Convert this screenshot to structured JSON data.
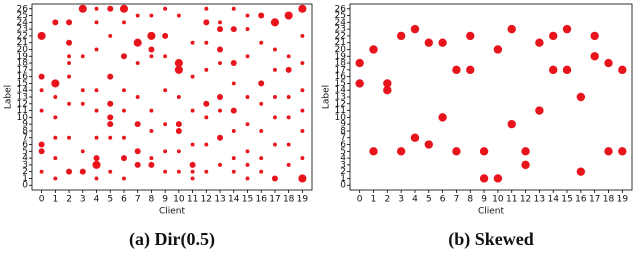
{
  "chart_data": [
    {
      "type": "scatter",
      "caption": "(a) Dir(0.5)",
      "xlabel": "Client",
      "ylabel": "Label",
      "color": "#e8141c",
      "xlim": [
        -0.7,
        19.7
      ],
      "ylim": [
        -0.7,
        26.7
      ],
      "xticks": [
        0,
        1,
        2,
        3,
        4,
        5,
        6,
        7,
        8,
        9,
        10,
        11,
        12,
        13,
        14,
        15,
        16,
        17,
        18,
        19
      ],
      "yticks": [
        0,
        1,
        2,
        3,
        4,
        5,
        6,
        7,
        8,
        9,
        10,
        11,
        12,
        13,
        14,
        15,
        16,
        17,
        18,
        19,
        20,
        21,
        22,
        23,
        24,
        25,
        26
      ],
      "x": [
        0,
        0,
        0,
        0,
        0,
        0,
        0,
        1,
        1,
        1,
        1,
        1,
        1,
        1,
        2,
        2,
        2,
        2,
        2,
        2,
        2,
        2,
        3,
        3,
        3,
        3,
        3,
        3,
        4,
        4,
        4,
        4,
        4,
        4,
        4,
        4,
        4,
        5,
        5,
        5,
        5,
        5,
        5,
        5,
        5,
        6,
        6,
        6,
        6,
        6,
        6,
        6,
        6,
        7,
        7,
        7,
        7,
        7,
        7,
        7,
        8,
        8,
        8,
        8,
        8,
        8,
        8,
        8,
        9,
        9,
        9,
        9,
        9,
        9,
        9,
        10,
        10,
        10,
        10,
        10,
        10,
        10,
        10,
        11,
        11,
        11,
        11,
        11,
        11,
        11,
        12,
        12,
        12,
        12,
        12,
        12,
        12,
        12,
        13,
        13,
        13,
        13,
        13,
        13,
        13,
        13,
        14,
        14,
        14,
        14,
        14,
        14,
        14,
        14,
        15,
        15,
        15,
        15,
        15,
        15,
        15,
        15,
        16,
        16,
        16,
        16,
        16,
        16,
        16,
        17,
        17,
        17,
        17,
        17,
        17,
        17,
        18,
        18,
        18,
        18,
        18,
        18,
        18,
        19,
        19,
        19,
        19,
        19,
        19,
        19,
        19
      ],
      "y": [
        22,
        16,
        14,
        11,
        6,
        5,
        2,
        24,
        15,
        13,
        10,
        7,
        4,
        1,
        24,
        21,
        19,
        18,
        16,
        12,
        7,
        2,
        26,
        19,
        14,
        12,
        5,
        2,
        26,
        24,
        20,
        14,
        11,
        7,
        4,
        3,
        1,
        26,
        22,
        16,
        12,
        10,
        9,
        7,
        2,
        26,
        24,
        19,
        14,
        11,
        7,
        4,
        1,
        25,
        21,
        18,
        13,
        9,
        5,
        3,
        25,
        22,
        20,
        19,
        11,
        8,
        4,
        3,
        26,
        22,
        19,
        14,
        9,
        5,
        2,
        25,
        18,
        17,
        13,
        9,
        8,
        5,
        2,
        21,
        16,
        11,
        6,
        3,
        2,
        1,
        26,
        24,
        21,
        17,
        12,
        10,
        6,
        2,
        24,
        23,
        20,
        18,
        13,
        11,
        7,
        3,
        26,
        23,
        18,
        15,
        11,
        8,
        4,
        2,
        25,
        23,
        19,
        13,
        9,
        5,
        3,
        1,
        25,
        21,
        15,
        12,
        8,
        4,
        2,
        24,
        20,
        17,
        13,
        10,
        6,
        1,
        25,
        19,
        17,
        13,
        10,
        6,
        3,
        26,
        22,
        18,
        14,
        11,
        8,
        4,
        1
      ],
      "sizes": [
        3,
        2,
        1,
        1,
        2,
        2,
        1,
        2,
        3,
        1,
        1,
        1,
        1,
        1,
        2,
        2,
        1,
        1,
        1,
        1,
        1,
        2,
        3,
        1,
        1,
        1,
        1,
        2,
        1,
        1,
        1,
        1,
        1,
        1,
        2,
        3,
        1,
        2,
        1,
        2,
        2,
        2,
        2,
        1,
        1,
        3,
        1,
        2,
        1,
        1,
        1,
        2,
        1,
        1,
        3,
        1,
        1,
        2,
        2,
        2,
        1,
        3,
        2,
        1,
        1,
        1,
        1,
        2,
        1,
        2,
        1,
        1,
        1,
        1,
        1,
        1,
        3,
        3,
        1,
        2,
        2,
        1,
        1,
        1,
        1,
        1,
        1,
        2,
        1,
        1,
        1,
        2,
        1,
        1,
        2,
        1,
        1,
        1,
        1,
        2,
        2,
        1,
        2,
        1,
        2,
        1,
        1,
        2,
        2,
        1,
        2,
        1,
        1,
        1,
        1,
        1,
        1,
        1,
        1,
        1,
        1,
        1,
        2,
        1,
        2,
        1,
        1,
        1,
        1,
        3,
        1,
        1,
        1,
        1,
        1,
        2,
        3,
        1,
        2,
        1,
        1,
        1,
        1,
        3,
        1,
        1,
        1,
        1,
        1,
        1,
        3
      ]
    },
    {
      "type": "scatter",
      "caption": "(b) Skewed",
      "xlabel": "Client",
      "ylabel": "Label",
      "color": "#e8141c",
      "xlim": [
        -0.7,
        19.7
      ],
      "ylim": [
        -0.7,
        26.7
      ],
      "xticks": [
        0,
        1,
        2,
        3,
        4,
        5,
        6,
        7,
        8,
        9,
        10,
        11,
        12,
        13,
        14,
        15,
        16,
        17,
        18,
        19
      ],
      "yticks": [
        0,
        1,
        2,
        3,
        4,
        5,
        6,
        7,
        8,
        9,
        10,
        11,
        12,
        13,
        14,
        15,
        16,
        17,
        18,
        19,
        20,
        21,
        22,
        23,
        24,
        25,
        26
      ],
      "x": [
        0,
        0,
        1,
        1,
        2,
        2,
        3,
        3,
        4,
        4,
        5,
        5,
        6,
        6,
        7,
        7,
        8,
        8,
        9,
        9,
        10,
        10,
        11,
        11,
        12,
        12,
        13,
        13,
        14,
        14,
        15,
        15,
        16,
        16,
        17,
        17,
        18,
        18,
        19,
        19
      ],
      "y": [
        18,
        15,
        20,
        5,
        15,
        14,
        22,
        5,
        23,
        7,
        21,
        6,
        21,
        10,
        17,
        5,
        22,
        17,
        5,
        1,
        20,
        1,
        23,
        9,
        5,
        3,
        21,
        11,
        22,
        17,
        23,
        17,
        13,
        2,
        22,
        19,
        18,
        5,
        17,
        5
      ]
    }
  ]
}
